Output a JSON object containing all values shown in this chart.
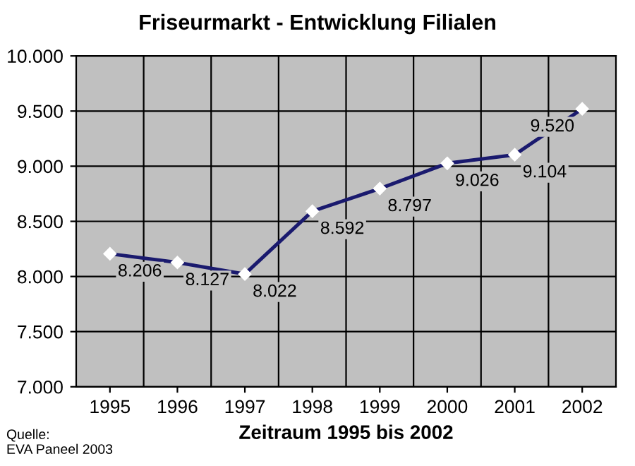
{
  "chart_data": {
    "type": "line",
    "title": "Friseurmarkt - Entwicklung Filialen",
    "xlabel": "Zeitraum 1995 bis 2002",
    "categories": [
      "1995",
      "1996",
      "1997",
      "1998",
      "1999",
      "2000",
      "2001",
      "2002"
    ],
    "series": [
      {
        "color": "#1a1a6e",
        "values": [
          8206,
          8127,
          8022,
          8592,
          8797,
          9026,
          9104,
          9520
        ]
      }
    ],
    "value_labels": [
      "8.206",
      "8.127",
      "8.022",
      "8.592",
      "8.797",
      "9.026",
      "9.104",
      "9.520"
    ],
    "ylim": [
      7000,
      10000
    ],
    "yticks": [
      {
        "value": 7000,
        "label": "7.000"
      },
      {
        "value": 7500,
        "label": "7.500"
      },
      {
        "value": 8000,
        "label": "8.000"
      },
      {
        "value": 8500,
        "label": "8.500"
      },
      {
        "value": 9000,
        "label": "9.000"
      },
      {
        "value": 9500,
        "label": "9.500"
      },
      {
        "value": 10000,
        "label": "10.000"
      }
    ],
    "grid": true,
    "marker": "diamond",
    "line_style": "solid",
    "legend": false,
    "annotations": [
      "Quelle:\nEVA Paneel 2003"
    ]
  }
}
